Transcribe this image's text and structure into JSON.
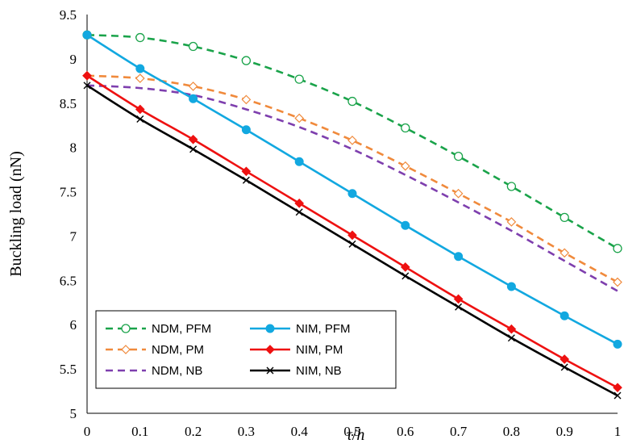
{
  "chart_data": {
    "type": "line",
    "xlabel_main": "τ",
    "xlabel_sep": "/",
    "xlabel_denom": "h",
    "ylabel": "Buckling load (nN)",
    "xlim": [
      0,
      1
    ],
    "ylim": [
      5,
      9.5
    ],
    "x_ticks": [
      "0",
      "0.1",
      "0.2",
      "0.3",
      "0.4",
      "0.5",
      "0.6",
      "0.7",
      "0.8",
      "0.9",
      "1"
    ],
    "y_ticks": [
      "5",
      "5.5",
      "6",
      "6.5",
      "7",
      "7.5",
      "8",
      "8.5",
      "9",
      "9.5"
    ],
    "grid": false,
    "legend_position": "bottom-left",
    "x": [
      0,
      0.1,
      0.2,
      0.3,
      0.4,
      0.5,
      0.6,
      0.7,
      0.8,
      0.9,
      1.0
    ],
    "series": [
      {
        "name": "NDM, PFM",
        "color": "#1aa34a",
        "dash": "dashed",
        "marker": "open-circle",
        "values": [
          9.27,
          9.24,
          9.14,
          8.98,
          8.77,
          8.52,
          8.22,
          7.9,
          7.56,
          7.21,
          6.86
        ]
      },
      {
        "name": "NIM, PFM",
        "color": "#12a8e0",
        "dash": "solid",
        "marker": "filled-circle",
        "values": [
          9.27,
          8.89,
          8.55,
          8.2,
          7.84,
          7.48,
          7.12,
          6.77,
          6.43,
          6.1,
          5.78
        ]
      },
      {
        "name": "NDM, PM",
        "color": "#f08a3c",
        "dash": "dashed",
        "marker": "open-diamond",
        "values": [
          8.81,
          8.78,
          8.69,
          8.54,
          8.33,
          8.08,
          7.79,
          7.48,
          7.16,
          6.81,
          6.48
        ]
      },
      {
        "name": "NIM, PM",
        "color": "#ee1111",
        "dash": "solid",
        "marker": "filled-diamond",
        "values": [
          8.81,
          8.43,
          8.09,
          7.73,
          7.37,
          7.01,
          6.65,
          6.29,
          5.95,
          5.61,
          5.29
        ]
      },
      {
        "name": "NDM, NB",
        "color": "#7e3fae",
        "dash": "dashed",
        "marker": "none",
        "values": [
          8.7,
          8.67,
          8.59,
          8.43,
          8.23,
          7.98,
          7.69,
          7.38,
          7.06,
          6.72,
          6.38
        ]
      },
      {
        "name": "NIM, NB",
        "color": "#000000",
        "dash": "solid",
        "marker": "cross",
        "values": [
          8.7,
          8.32,
          7.98,
          7.63,
          7.27,
          6.91,
          6.55,
          6.2,
          5.85,
          5.52,
          5.2
        ]
      }
    ]
  }
}
